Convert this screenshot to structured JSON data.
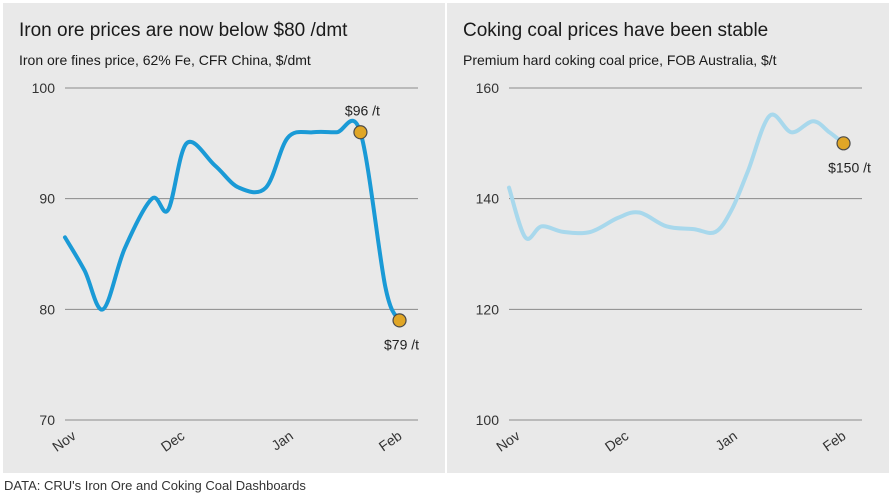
{
  "source": "DATA: CRU's Iron Ore and Coking Coal Dashboards",
  "chart_data": [
    {
      "type": "line",
      "title": "Iron ore prices are now below $80 /dmt",
      "subtitle": "Iron ore fines price, 62% Fe, CFR China, $/dmt",
      "color": "#1a9ad6",
      "ylim": [
        70,
        100
      ],
      "yticks": [
        70,
        80,
        90,
        100
      ],
      "xlim": [
        0,
        3.25
      ],
      "xticks": [
        {
          "label": "Nov",
          "x": 0
        },
        {
          "label": "Dec",
          "x": 1
        },
        {
          "label": "Jan",
          "x": 2
        },
        {
          "label": "Feb",
          "x": 3
        }
      ],
      "x": [
        0,
        0.18,
        0.35,
        0.55,
        0.8,
        0.95,
        1.12,
        1.38,
        1.6,
        1.85,
        2.05,
        2.28,
        2.5,
        2.72,
        2.95,
        3.08
      ],
      "values": [
        86.5,
        83.5,
        80.0,
        85.5,
        90.0,
        89.0,
        95.0,
        93.0,
        91.0,
        91.0,
        95.5,
        96.0,
        96.0,
        96.0,
        82.0,
        79.0
      ],
      "annotations": [
        {
          "label": "$96 /t",
          "x": 2.72,
          "y": 96,
          "position": "above"
        },
        {
          "label": "$79 /t",
          "x": 3.08,
          "y": 79,
          "position": "below"
        }
      ]
    },
    {
      "type": "line",
      "title": "Coking coal prices have been stable",
      "subtitle": "Premium hard coking coal price, FOB Australia, $/t",
      "color": "#a8d8ec",
      "ylim": [
        100,
        160
      ],
      "yticks": [
        100,
        120,
        140,
        160
      ],
      "xlim": [
        0,
        3.25
      ],
      "xticks": [
        {
          "label": "Nov",
          "x": 0
        },
        {
          "label": "Dec",
          "x": 1
        },
        {
          "label": "Jan",
          "x": 2
        },
        {
          "label": "Feb",
          "x": 3
        }
      ],
      "x": [
        0,
        0.15,
        0.3,
        0.5,
        0.75,
        1.0,
        1.2,
        1.45,
        1.7,
        1.9,
        2.05,
        2.2,
        2.4,
        2.6,
        2.8,
        2.95,
        3.08
      ],
      "values": [
        142,
        133,
        135,
        134,
        134,
        136.5,
        137.5,
        135,
        134.5,
        134,
        138,
        145,
        155,
        152,
        154,
        152,
        150
      ],
      "annotations": [
        {
          "label": "$150 /t",
          "x": 3.08,
          "y": 150,
          "position": "below"
        }
      ]
    }
  ]
}
